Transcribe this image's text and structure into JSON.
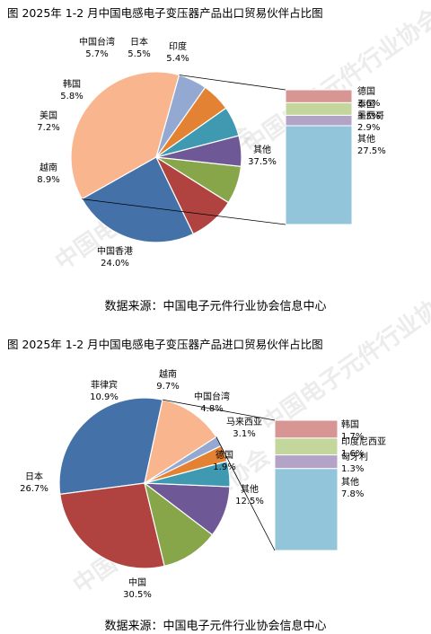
{
  "watermark": "中国电子元件行业协会",
  "figures": [
    {
      "title": "图    2025年 1-2 月中国电感电子变压器产品出口贸易伙伴占比图",
      "source": "数据来源：中国电子元件行业协会信息中心"
    },
    {
      "title": "图    2025年 1-2 月中国电感电子变压器产品进口贸易伙伴占比图",
      "source": "数据来源：中国电子元件行业协会信息中心"
    }
  ],
  "chart_data": [
    {
      "type": "pie",
      "title": "2025年 1-2 月中国电感电子变压器产品出口贸易伙伴占比图",
      "unit": "%",
      "slices": [
        {
          "label": "其他",
          "value": 37.5,
          "color": "#F9B68E"
        },
        {
          "label": "中国香港",
          "value": 24.0,
          "color": "#4472A8"
        },
        {
          "label": "越南",
          "value": 8.9,
          "color": "#B0433F"
        },
        {
          "label": "美国",
          "value": 7.2,
          "color": "#87A64A"
        },
        {
          "label": "韩国",
          "value": 5.8,
          "color": "#6E5895"
        },
        {
          "label": "中国台湾",
          "value": 5.7,
          "color": "#3F9AB1"
        },
        {
          "label": "日本",
          "value": 5.5,
          "color": "#E48233"
        },
        {
          "label": "印度",
          "value": 5.4,
          "color": "#93A9D2"
        }
      ],
      "breakdown": {
        "of": "其他",
        "items": [
          {
            "label": "德国",
            "value": 3.6,
            "color": "#D79694"
          },
          {
            "label": "泰国",
            "value": 3.5,
            "color": "#C3D69B"
          },
          {
            "label": "墨西哥",
            "value": 2.9,
            "color": "#B2A3C7"
          },
          {
            "label": "其他",
            "value": 27.5,
            "color": "#92C5D9"
          }
        ]
      }
    },
    {
      "type": "pie",
      "title": "2025年 1-2 月中国电感电子变压器产品进口贸易伙伴占比图",
      "unit": "%",
      "slices": [
        {
          "label": "中国",
          "value": 30.5,
          "color": "#4472A8"
        },
        {
          "label": "日本",
          "value": 26.7,
          "color": "#B0433F"
        },
        {
          "label": "菲律宾",
          "value": 10.9,
          "color": "#87A64A"
        },
        {
          "label": "越南",
          "value": 9.7,
          "color": "#6E5895"
        },
        {
          "label": "中国台湾",
          "value": 4.8,
          "color": "#3F9AB1"
        },
        {
          "label": "马来西亚",
          "value": 3.1,
          "color": "#E48233"
        },
        {
          "label": "德国",
          "value": 1.9,
          "color": "#93A9D2"
        },
        {
          "label": "其他",
          "value": 12.5,
          "color": "#F9B68E"
        }
      ],
      "breakdown": {
        "of": "其他",
        "items": [
          {
            "label": "韩国",
            "value": 1.7,
            "color": "#D79694"
          },
          {
            "label": "印度尼西亚",
            "value": 1.6,
            "color": "#C3D69B"
          },
          {
            "label": "匈牙利",
            "value": 1.3,
            "color": "#B2A3C7"
          },
          {
            "label": "其他",
            "value": 7.8,
            "color": "#92C5D9"
          }
        ]
      }
    }
  ]
}
